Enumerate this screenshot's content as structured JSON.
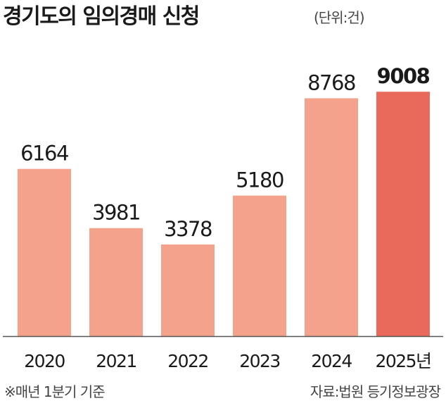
{
  "title": "경기도의 임의경매 신청",
  "unit": "(단위:건)",
  "footnote": "※매년 1분기 기준",
  "source": "자료:법원 등기정보광장",
  "colors": {
    "bar": "#f4a28c",
    "highlight": "#e9695a",
    "baseline": "#555555",
    "text": "#1a1a1a"
  },
  "chart_data": {
    "type": "bar",
    "categories": [
      "2020",
      "2021",
      "2022",
      "2023",
      "2024",
      "2025년"
    ],
    "values": [
      6164,
      3981,
      3378,
      5180,
      8768,
      9008
    ],
    "highlight_index": 5,
    "title": "경기도의 임의경매 신청",
    "ylim": [
      0,
      10000
    ],
    "grid": false,
    "legend": "none"
  }
}
